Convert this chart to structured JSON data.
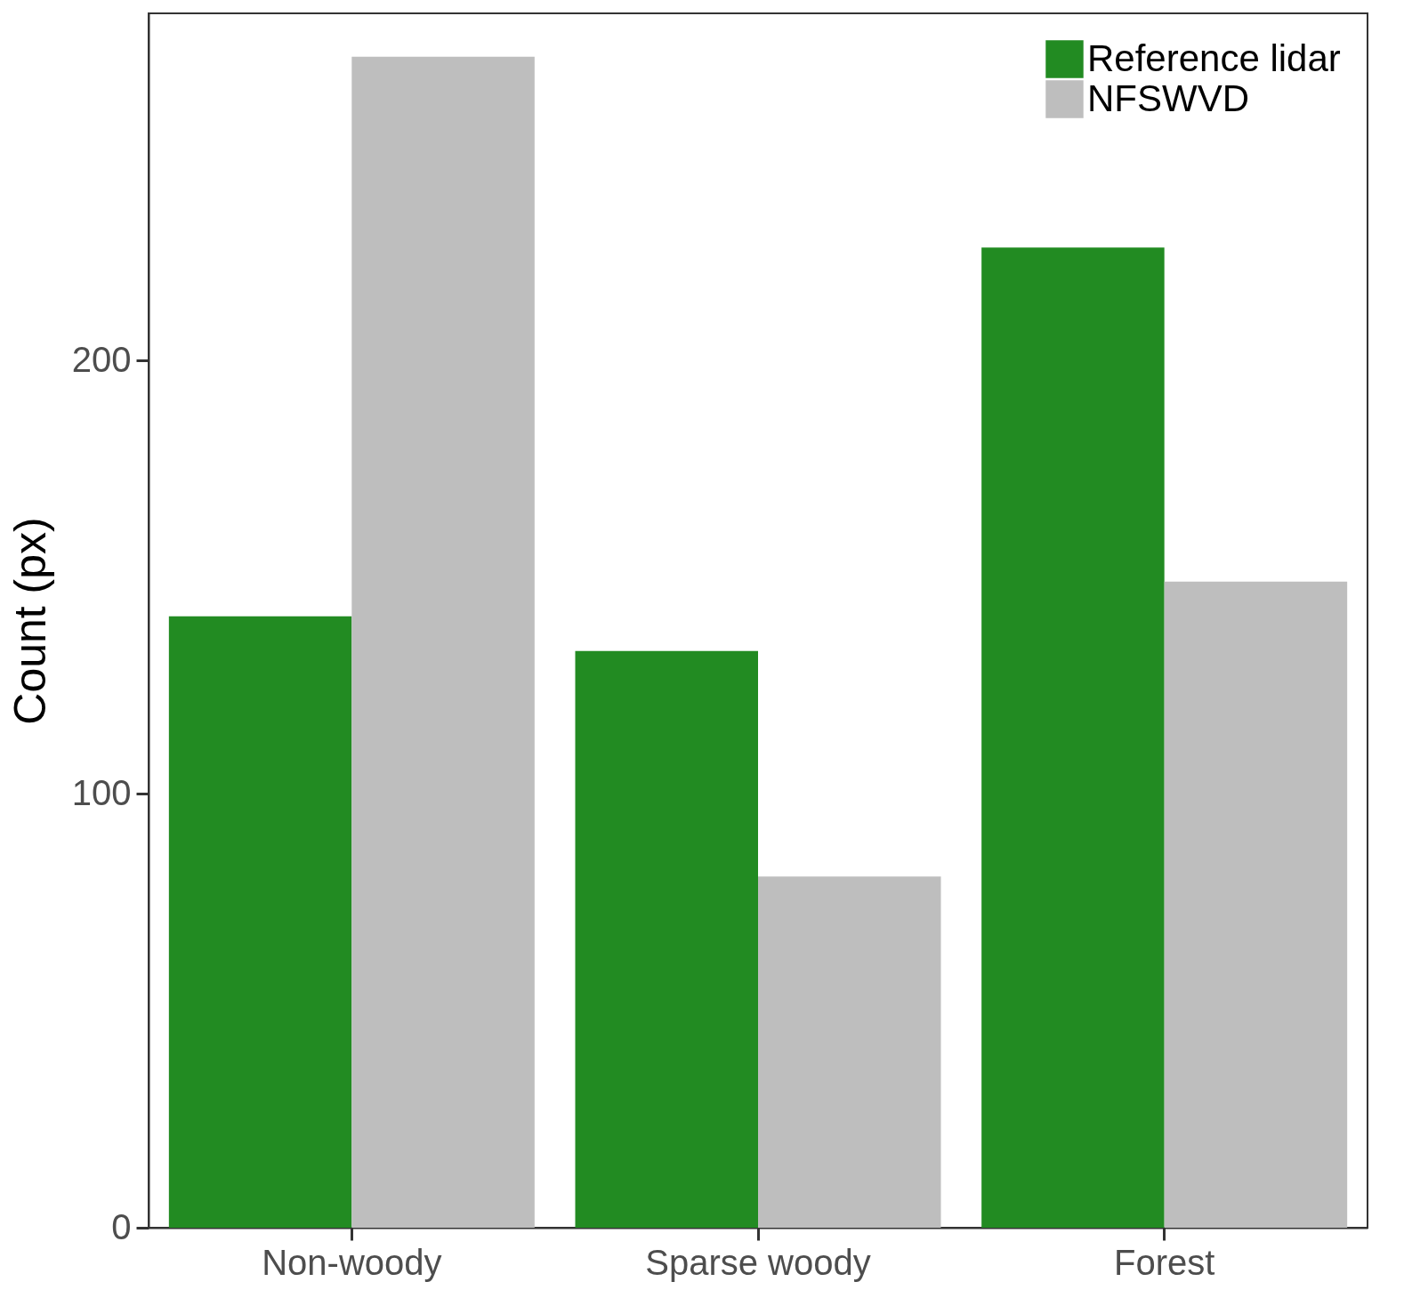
{
  "chart_data": {
    "type": "bar",
    "ylabel": "Count (px)",
    "categories": [
      "Non-woody",
      "Sparse woody",
      "Forest"
    ],
    "series": [
      {
        "name": "Reference lidar",
        "color": "#228b22",
        "values": [
          141,
          133,
          226
        ]
      },
      {
        "name": "NFSWVD",
        "color": "#bebebe",
        "values": [
          270,
          81,
          149
        ]
      }
    ],
    "ylim": [
      0,
      280
    ],
    "yticks": [
      0,
      100,
      200
    ],
    "legend": "top right"
  }
}
